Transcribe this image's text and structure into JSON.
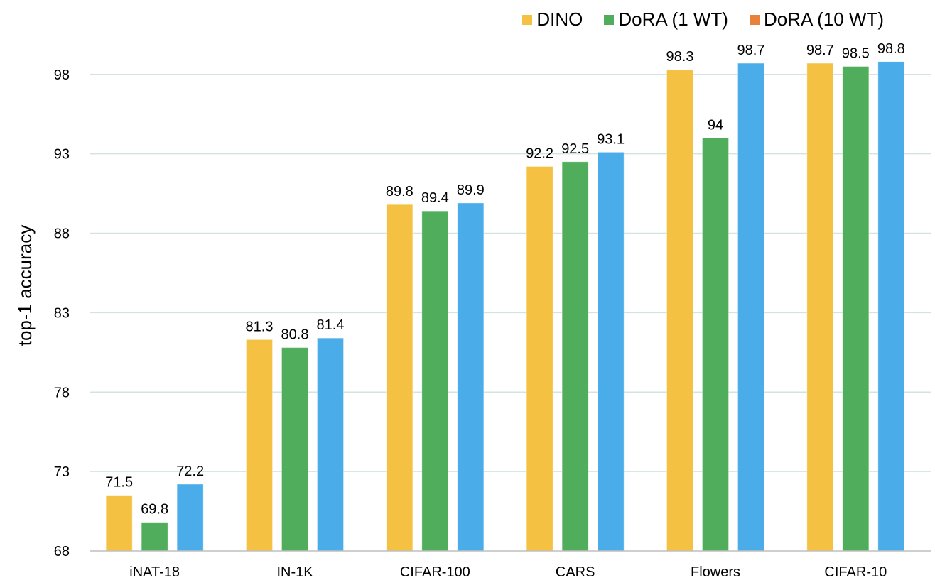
{
  "chart_data": {
    "type": "bar",
    "categories": [
      "iNAT-18",
      "IN-1K",
      "CIFAR-100",
      "CARS",
      "Flowers",
      "CIFAR-10"
    ],
    "series": [
      {
        "name": "DINO",
        "color": "#F5C142",
        "values": [
          71.5,
          81.3,
          89.8,
          92.2,
          98.3,
          98.7
        ]
      },
      {
        "name": "DoRA (1 WT)",
        "color": "#4FAD5B",
        "values": [
          69.8,
          80.8,
          89.4,
          92.5,
          94,
          98.5
        ]
      },
      {
        "name": "DoRA (10 WT)",
        "legend_color": "#E8823A",
        "color": "#4AACE8",
        "values": [
          72.2,
          81.4,
          89.9,
          93.1,
          98.7,
          98.8
        ]
      }
    ],
    "value_labels": [
      [
        "71.5",
        "81.3",
        "89.8",
        "92.2",
        "98.3",
        "98.7"
      ],
      [
        "69.8",
        "80.8",
        "89.4",
        "92.5",
        "94",
        "98.5"
      ],
      [
        "72.2",
        "81.4",
        "89.9",
        "93.1",
        "98.7",
        "98.8"
      ]
    ],
    "ylabel": "top-1 accuracy",
    "xlabel": "",
    "title": "",
    "ylim": [
      68,
      100
    ],
    "yticks": [
      "68",
      "73",
      "78",
      "83",
      "88",
      "93",
      "98"
    ],
    "grid": true,
    "gridline_color": "#D2E4DF",
    "legend_position": "top-right"
  }
}
